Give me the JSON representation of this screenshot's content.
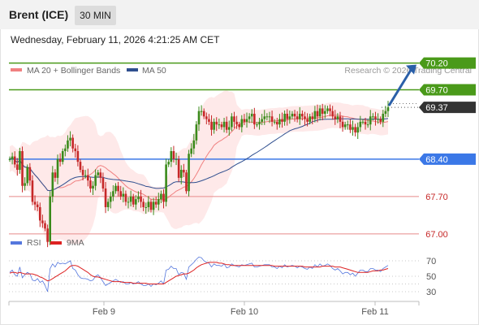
{
  "header": {
    "instrument": "Brent (ICE)",
    "timeframe": "30 MIN"
  },
  "timestamp": "Wednesday, February 11, 2026 4:21:25 AM CET",
  "colors": {
    "bollinger": "#f08080",
    "ma50": "#2f4f8f",
    "resistance": "#4a9a1a",
    "pivot": "#3b78e7",
    "support": "#e88a8a",
    "current": "#333333",
    "rsi": "#5577dd",
    "rsi_ma": "#dd2222",
    "arrow": "#2a5fa8"
  },
  "chart_data": [
    {
      "type": "candlestick",
      "legend": [
        "MA 20 + Bollinger Bands",
        "MA 50"
      ],
      "legend_placement": "top-left",
      "credit": "Research © 2026 Trading Central",
      "x_tick_labels": [
        "Feb 9",
        "Feb 10",
        "Feb 11"
      ],
      "ylim": [
        66.6,
        70.4
      ],
      "levels": [
        {
          "value": 70.2,
          "label": "70.20",
          "kind": "resistance"
        },
        {
          "value": 69.7,
          "label": "69.70",
          "kind": "resistance"
        },
        {
          "value": 69.37,
          "label": "69.37",
          "kind": "current"
        },
        {
          "value": 68.4,
          "label": "68.40",
          "kind": "pivot"
        },
        {
          "value": 67.7,
          "label": "67.70",
          "kind": "support"
        },
        {
          "value": 67.0,
          "label": "67.00",
          "kind": "support"
        }
      ],
      "closes": [
        68.4,
        68.45,
        68.3,
        68.2,
        68.55,
        67.9,
        67.95,
        68.25,
        68.0,
        67.6,
        67.55,
        67.5,
        67.25,
        67.2,
        67.1,
        66.85,
        67.7,
        68.15,
        68.05,
        68.4,
        68.35,
        68.55,
        68.6,
        68.75,
        68.8,
        68.6,
        68.55,
        68.35,
        68.2,
        68.1,
        68.1,
        68.0,
        67.85,
        67.9,
        68.1,
        68.15,
        68.05,
        67.85,
        67.5,
        67.6,
        67.7,
        67.8,
        67.9,
        67.8,
        67.7,
        67.75,
        67.6,
        67.6,
        67.7,
        67.55,
        67.65,
        67.7,
        67.6,
        67.5,
        67.5,
        67.6,
        67.45,
        67.6,
        67.55,
        67.65,
        67.75,
        67.6,
        68.3,
        68.35,
        68.55,
        68.4,
        68.4,
        68.05,
        68.2,
        68.15,
        67.8,
        68.5,
        68.6,
        68.75,
        69.05,
        69.3,
        69.3,
        69.2,
        69.15,
        69.1,
        68.95,
        69.1,
        69.05,
        69.05,
        69.0,
        69.1,
        68.95,
        69.0,
        69.2,
        69.1,
        69.05,
        69.0,
        69.15,
        69.1,
        69.15,
        69.2,
        69.25,
        69.05,
        69.05,
        69.1,
        69.15,
        69.2,
        69.2,
        69.2,
        69.1,
        69.1,
        69.05,
        69.15,
        69.1,
        69.25,
        69.15,
        69.2,
        69.25,
        69.2,
        69.15,
        69.25,
        69.2,
        69.15,
        69.1,
        69.2,
        69.15,
        69.3,
        69.2,
        69.35,
        69.25,
        69.3,
        69.35,
        69.3,
        69.2,
        69.15,
        69.2,
        69.1,
        69.0,
        69.05,
        69.05,
        68.95,
        69.0,
        68.9,
        69.0,
        69.1,
        69.1,
        69.05,
        69.05,
        69.2,
        69.2,
        69.15,
        69.15,
        69.1,
        69.25,
        69.3,
        69.37
      ]
    },
    {
      "type": "line",
      "legend": [
        "RSI",
        "9MA"
      ],
      "legend_placement": "top-left",
      "y_tick_labels": [
        "70",
        "50",
        "30"
      ],
      "ylim": [
        20,
        80
      ],
      "series": [
        {
          "name": "RSI",
          "values": [
            55,
            58,
            52,
            50,
            62,
            48,
            52,
            55,
            53,
            45,
            44,
            47,
            42,
            44,
            38,
            30,
            60,
            66,
            62,
            68,
            66,
            67,
            66,
            68,
            70,
            60,
            58,
            52,
            48,
            47,
            47,
            46,
            44,
            45,
            50,
            52,
            48,
            43,
            38,
            40,
            42,
            44,
            46,
            44,
            42,
            43,
            40,
            40,
            42,
            40,
            41,
            43,
            40,
            38,
            38,
            40,
            37,
            40,
            39,
            41,
            44,
            40,
            58,
            59,
            63,
            60,
            60,
            52,
            55,
            54,
            46,
            62,
            65,
            68,
            72,
            75,
            74,
            70,
            68,
            67,
            62,
            66,
            64,
            64,
            63,
            66,
            61,
            62,
            66,
            64,
            63,
            62,
            65,
            64,
            65,
            66,
            67,
            62,
            62,
            63,
            64,
            65,
            65,
            65,
            62,
            62,
            60,
            63,
            61,
            65,
            62,
            63,
            64,
            63,
            61,
            63,
            62,
            60,
            59,
            62,
            60,
            65,
            62,
            66,
            63,
            64,
            66,
            64,
            60,
            58,
            60,
            57,
            53,
            55,
            55,
            52,
            54,
            50,
            54,
            58,
            58,
            56,
            56,
            60,
            60,
            58,
            58,
            56,
            60,
            62,
            64
          ]
        },
        {
          "name": "9MA",
          "values": [
            54,
            55,
            55,
            54,
            55,
            54,
            53,
            53,
            53,
            53,
            52,
            51,
            49,
            48,
            46,
            44,
            45,
            47,
            49,
            51,
            53,
            55,
            57,
            60,
            63,
            64,
            64,
            63,
            61,
            59,
            57,
            55,
            52,
            50,
            49,
            49,
            48,
            47,
            46,
            45,
            44,
            43,
            43,
            43,
            43,
            42,
            42,
            42,
            42,
            41,
            41,
            41,
            41,
            41,
            41,
            40,
            40,
            40,
            40,
            40,
            40,
            40,
            42,
            44,
            46,
            48,
            50,
            51,
            52,
            53,
            53,
            54,
            56,
            58,
            61,
            63,
            65,
            66,
            67,
            68,
            68,
            68,
            68,
            67,
            67,
            66,
            65,
            65,
            64,
            64,
            64,
            64,
            64,
            64,
            64,
            64,
            64,
            64,
            64,
            64,
            64,
            64,
            64,
            64,
            64,
            63,
            63,
            63,
            63,
            63,
            63,
            63,
            63,
            63,
            63,
            63,
            63,
            62,
            62,
            62,
            62,
            62,
            62,
            62,
            63,
            63,
            63,
            63,
            63,
            62,
            62,
            62,
            61,
            60,
            59,
            58,
            57,
            56,
            55,
            55,
            55,
            55,
            55,
            56,
            57,
            57,
            57,
            58,
            58,
            59,
            60
          ]
        }
      ]
    }
  ]
}
